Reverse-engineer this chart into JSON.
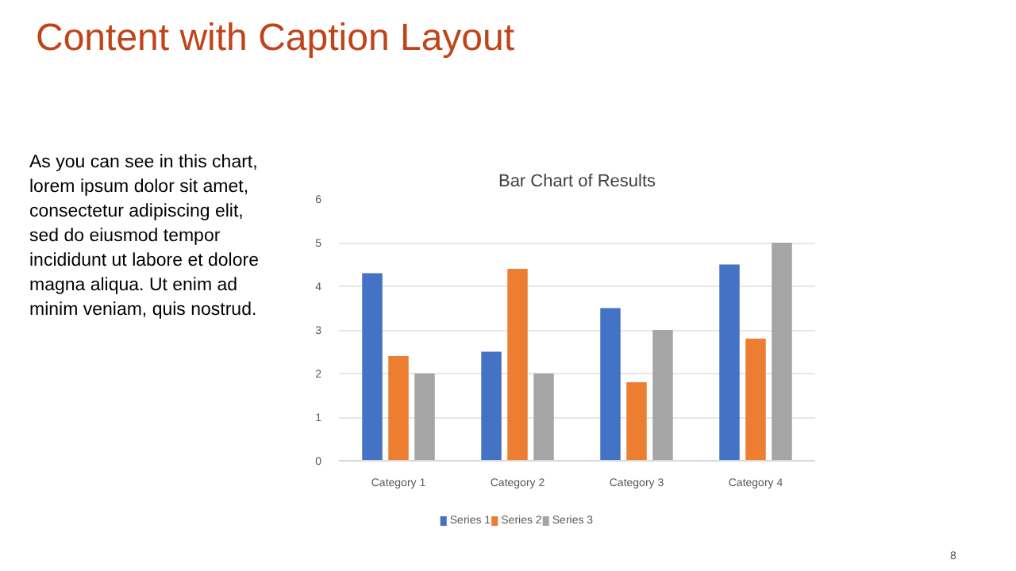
{
  "chart_data": {
    "type": "bar",
    "title": "Bar Chart of Results",
    "categories": [
      "Category 1",
      "Category 2",
      "Category 3",
      "Category 4"
    ],
    "series": [
      {
        "name": "Series 1",
        "color": "#4472c4",
        "values": [
          4.3,
          2.5,
          3.5,
          4.5
        ]
      },
      {
        "name": "Series 2",
        "color": "#ed7d31",
        "values": [
          2.4,
          4.4,
          1.8,
          2.8
        ]
      },
      {
        "name": "Series 3",
        "color": "#a5a5a5",
        "values": [
          2,
          2,
          3,
          5
        ]
      }
    ],
    "ylim": [
      0,
      6
    ],
    "yticks": [
      0,
      1,
      2,
      3,
      4,
      5,
      6
    ],
    "grid": "y",
    "legend": "bottom",
    "annotations": [
      "Content with Caption Layout",
      "As you can see in this chart,\nlorem ipsum dolor sit amet,\nconsectetur adipiscing elit,\nsed do eiusmod tempor\nincididunt ut labore et dolore\nmagna aliqua. Ut enim ad\nminim veniam, quis nostrud.",
      "8"
    ]
  }
}
